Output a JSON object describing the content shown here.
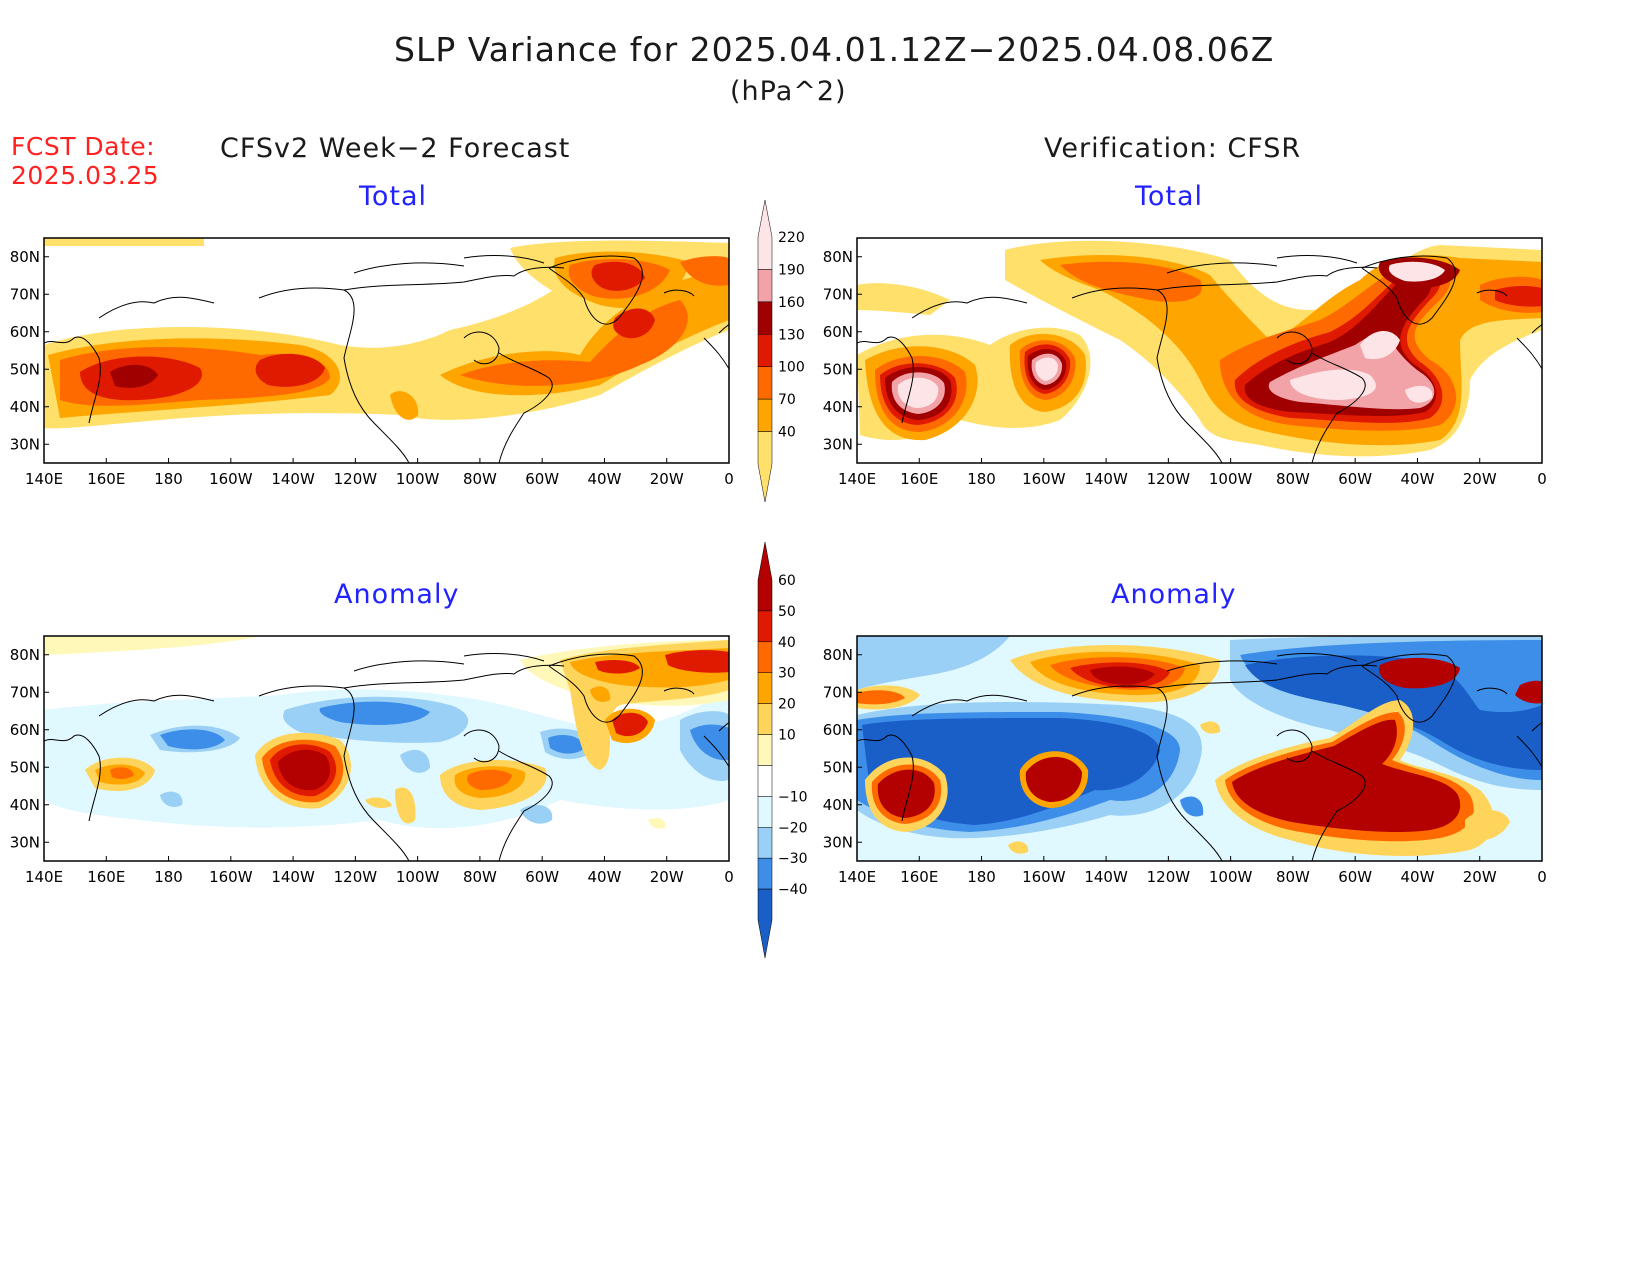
{
  "header": {
    "title": "SLP Variance for 2025.04.01.12Z−2025.04.08.06Z",
    "units": "(hPa^2)",
    "fcst_line1": "FCST Date:",
    "fcst_line2": "2025.03.25"
  },
  "columns": {
    "left_title": "CFSv2 Week−2 Forecast",
    "right_title": "Verification: CFSR"
  },
  "panels": {
    "forecast_total_title": "Total",
    "verification_total_title": "Total",
    "forecast_anomaly_title": "Anomaly",
    "verification_anomaly_title": "Anomaly"
  },
  "axes": {
    "lon_labels": [
      "140E",
      "160E",
      "180",
      "160W",
      "140W",
      "120W",
      "100W",
      "80W",
      "60W",
      "40W",
      "20W",
      "0"
    ],
    "lat_labels": [
      "80N",
      "70N",
      "60N",
      "50N",
      "40N",
      "30N"
    ]
  },
  "colorbars": {
    "total": {
      "labels": [
        "220",
        "190",
        "160",
        "130",
        "100",
        "70",
        "40"
      ],
      "colors": [
        "#fde4e6",
        "#f2a3a8",
        "#a00000",
        "#e01a00",
        "#ff6a00",
        "#ffa500",
        "#ffe06a"
      ]
    },
    "anomaly": {
      "labels": [
        "60",
        "50",
        "40",
        "30",
        "20",
        "10",
        "−10",
        "−20",
        "−30",
        "−40"
      ],
      "colors": [
        "#b30000",
        "#e01a00",
        "#ff6a00",
        "#ffa500",
        "#ffd45a",
        "#fff8b8",
        "#ffffff",
        "#e0f8ff",
        "#9ad0f5",
        "#3c8ee8",
        "#1a5fc8"
      ]
    }
  }
}
